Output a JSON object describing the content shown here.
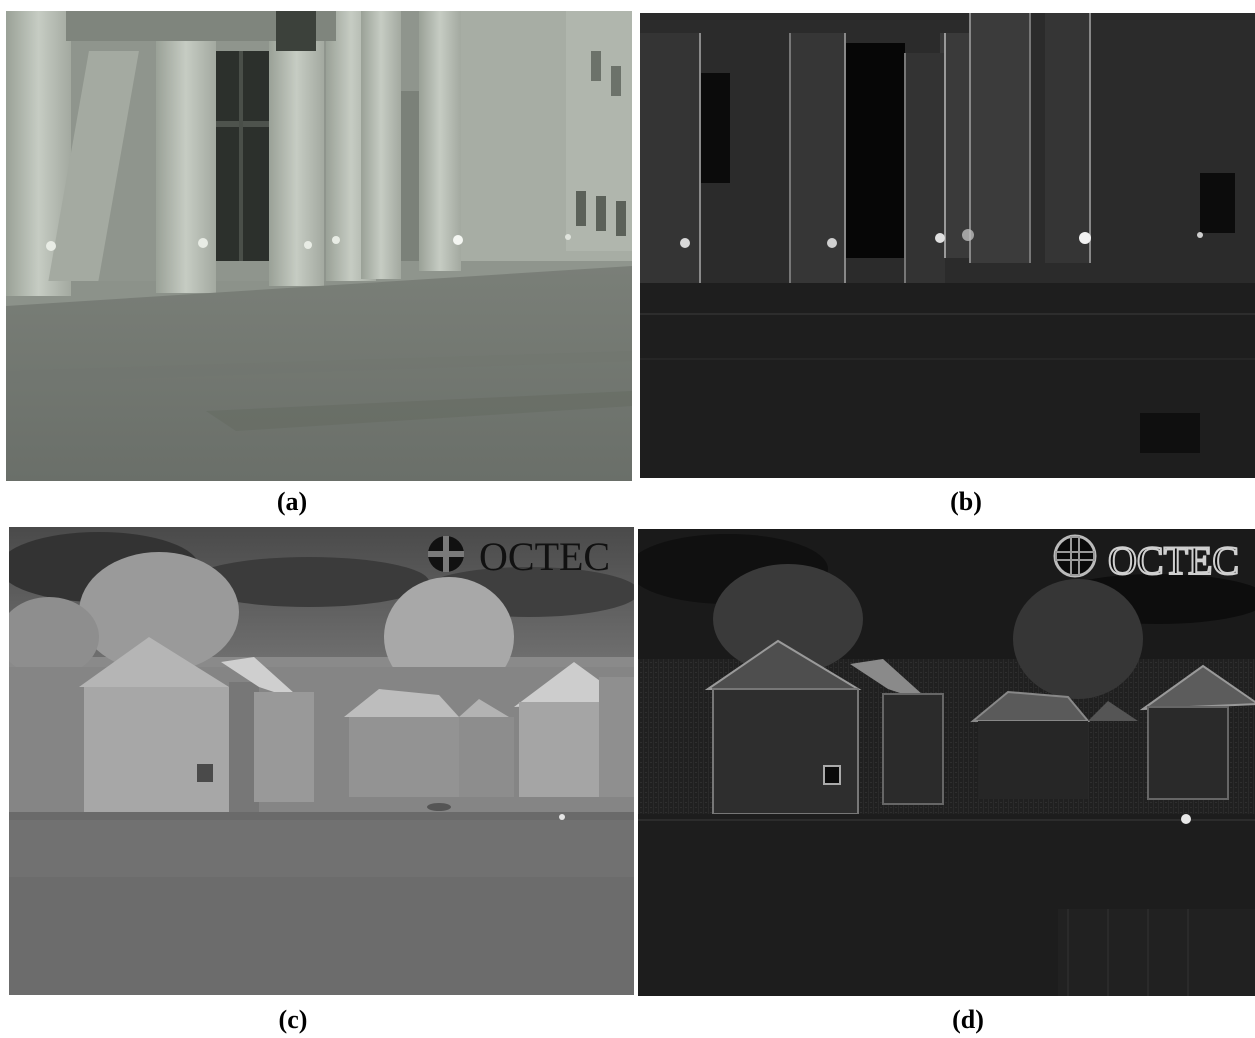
{
  "panels": [
    {
      "id": "a",
      "caption": "a",
      "description_icon": "thermal-building-columns"
    },
    {
      "id": "b",
      "caption": "b",
      "description_icon": "edge-enhanced-building-columns"
    },
    {
      "id": "c",
      "caption": "c",
      "description_icon": "thermal-houses"
    },
    {
      "id": "d",
      "caption": "d",
      "description_icon": "edge-enhanced-houses"
    }
  ],
  "logo": {
    "text_c": "OCTEC",
    "text_d": "OCTEC"
  }
}
